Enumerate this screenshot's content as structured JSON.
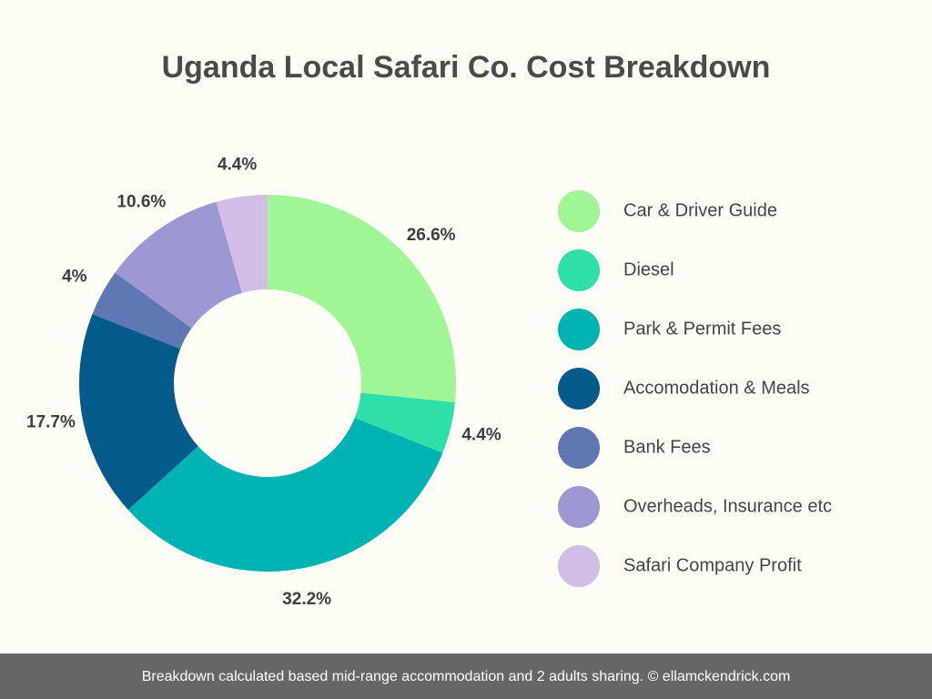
{
  "chart_data": {
    "type": "pie",
    "donut": true,
    "title": "Uganda Local Safari Co. Cost Breakdown",
    "categories": [
      "Car & Driver Guide",
      "Diesel",
      "Park & Permit Fees",
      "Accomodation & Meals",
      "Bank Fees",
      "Overheads, Insurance etc",
      "Safari Company Profit"
    ],
    "values": [
      26.6,
      4.4,
      32.2,
      17.7,
      4,
      10.6,
      4.4
    ],
    "value_labels": [
      "26.6%",
      "4.4%",
      "32.2%",
      "17.7%",
      "4%",
      "10.6%",
      "4.4%"
    ],
    "colors": [
      "#a0f595",
      "#2ee0a8",
      "#00b3b3",
      "#055a8c",
      "#5f77b3",
      "#9b97d0",
      "#d1bde6"
    ],
    "footnote": "Breakdown calculated based mid-range accommodation and 2 adults sharing. © ellamckendrick.com"
  }
}
